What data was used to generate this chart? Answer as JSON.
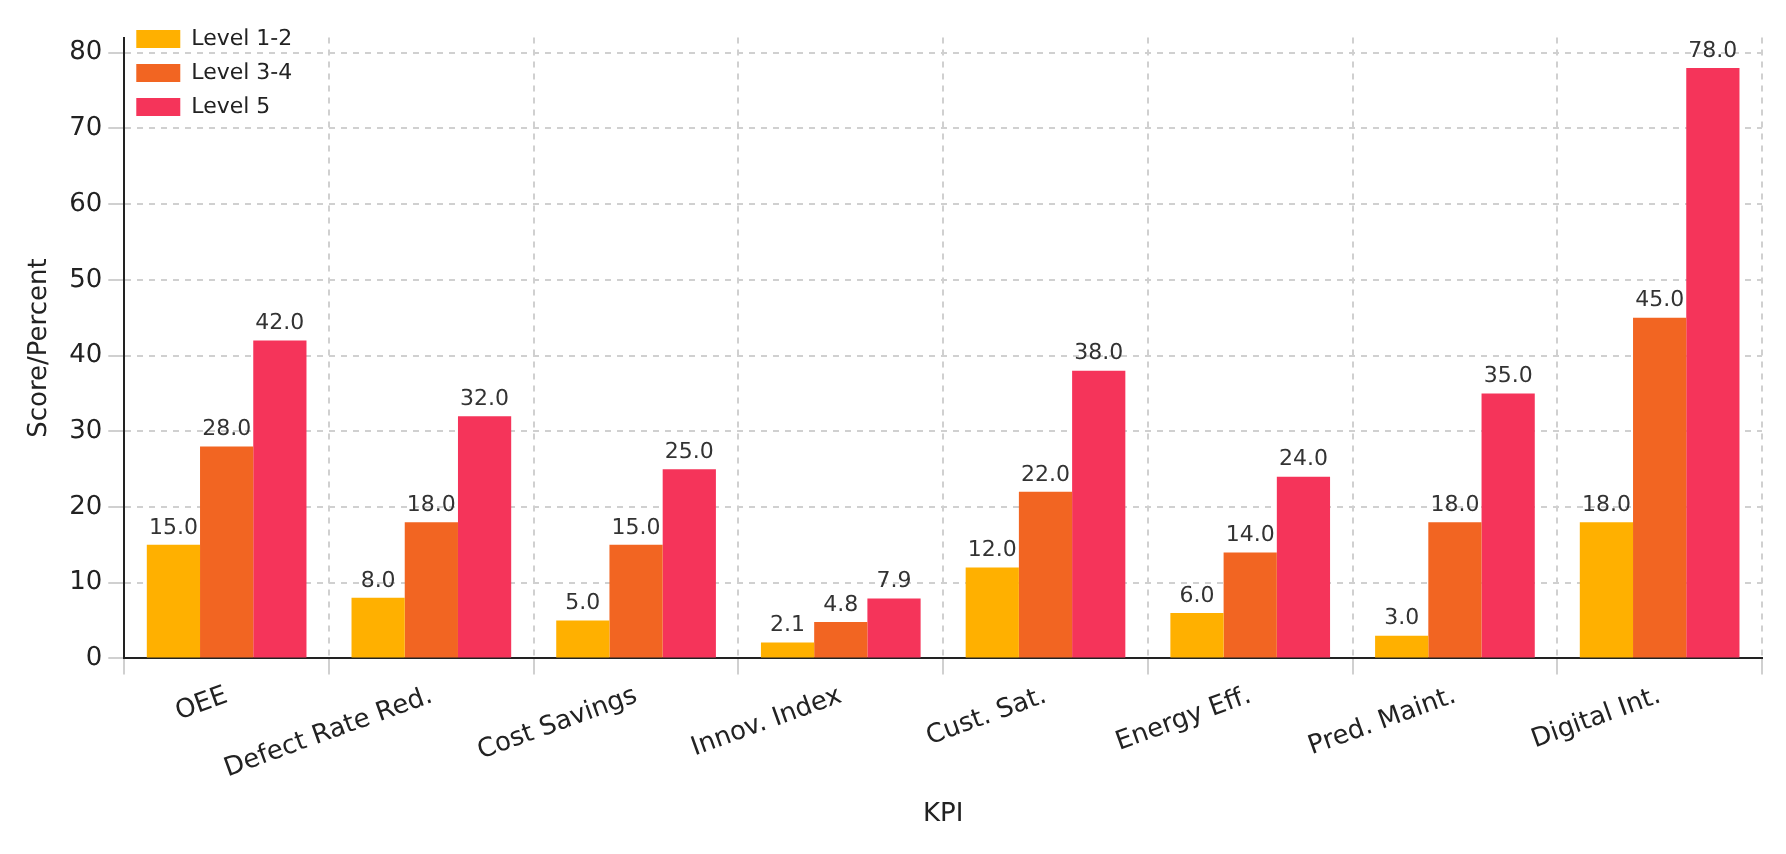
{
  "chart_data": {
    "type": "bar",
    "xlabel": "KPI",
    "ylabel": "Score/Percent",
    "categories": [
      "OEE",
      "Defect Rate Red.",
      "Cost Savings",
      "Innov. Index",
      "Cust. Sat.",
      "Energy Eff.",
      "Pred. Maint.",
      "Digital Int."
    ],
    "series": [
      {
        "name": "Level 1-2",
        "color": "#ffb000",
        "values": [
          15,
          8,
          5,
          2.1,
          12,
          6,
          3,
          18
        ],
        "value_labels": [
          "15.0",
          "8.0",
          "5.0",
          "2.1",
          "12.0",
          "6.0",
          "3.0",
          "18.0"
        ]
      },
      {
        "name": "Level 3-4",
        "color": "#f26522",
        "values": [
          28,
          18,
          15,
          4.8,
          22,
          14,
          18,
          45
        ],
        "value_labels": [
          "28.0",
          "18.0",
          "15.0",
          "4.8",
          "22.0",
          "14.0",
          "18.0",
          "45.0"
        ]
      },
      {
        "name": "Level 5",
        "color": "#f5345a",
        "values": [
          42,
          32,
          25,
          7.9,
          38,
          24,
          35,
          78
        ],
        "value_labels": [
          "42.0",
          "32.0",
          "25.0",
          "7.9",
          "38.0",
          "24.0",
          "35.0",
          "78.0"
        ]
      }
    ],
    "ylim": [
      0,
      82
    ],
    "yticks": [
      0,
      10,
      20,
      30,
      40,
      50,
      60,
      70,
      80
    ],
    "grid": true,
    "legend": "top left"
  }
}
